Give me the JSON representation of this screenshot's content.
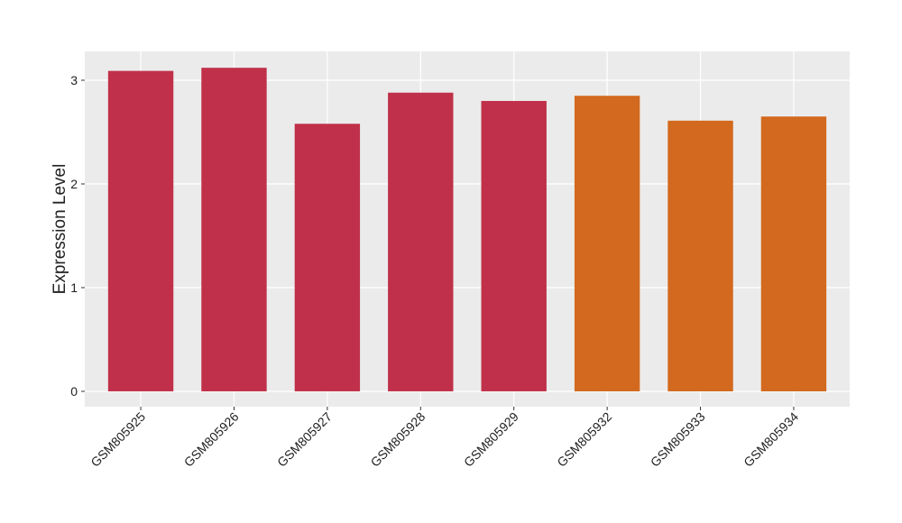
{
  "chart_data": {
    "type": "bar",
    "y_label": "Expression Level",
    "categories": [
      "GSM805925",
      "GSM805926",
      "GSM805927",
      "GSM805928",
      "GSM805929",
      "GSM805932",
      "GSM805933",
      "GSM805934"
    ],
    "values": [
      3.09,
      3.12,
      2.58,
      2.88,
      2.8,
      2.85,
      2.61,
      2.65
    ],
    "colors": [
      "#c0304a",
      "#c0304a",
      "#c0304a",
      "#c0304a",
      "#c0304a",
      "#d2691e",
      "#d2691e",
      "#d2691e"
    ],
    "ylim": [
      -0.148,
      3.278
    ],
    "yticks": [
      0,
      1,
      2,
      3
    ],
    "grid": true
  }
}
